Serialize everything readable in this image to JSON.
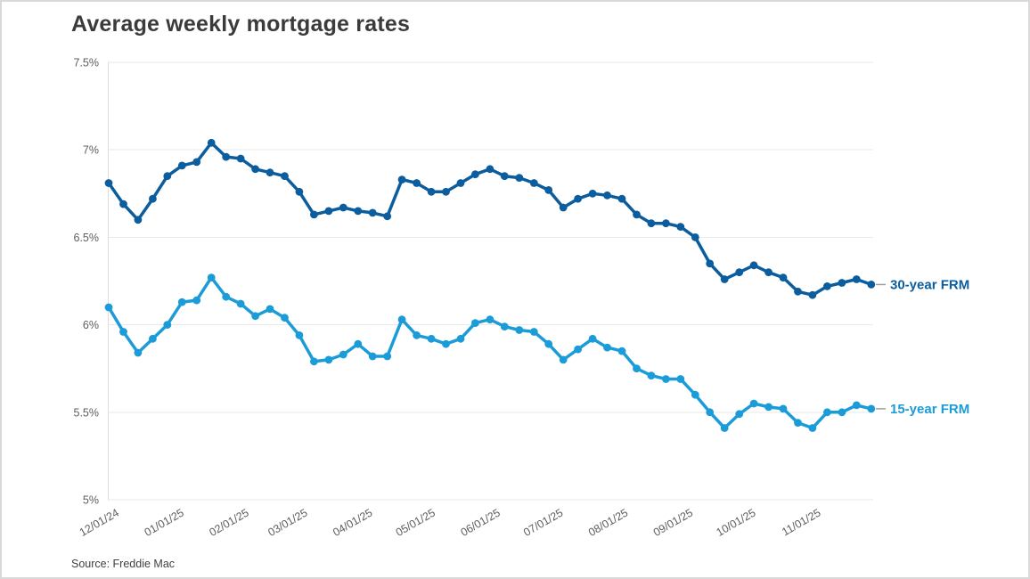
{
  "page": {
    "title": "Average weekly mortgage rates",
    "source": "Source: Freddie Mac"
  },
  "colors": {
    "background": "#ffffff",
    "card_border": "#d9d9d9",
    "title_text": "#3b3b3b",
    "tick_text": "#5e5e5e",
    "gridline": "#e9e9e9",
    "axis_line": "#dedede",
    "legend_dash": "#9e9e9e",
    "series_30yr": "#0b5d9e",
    "series_15yr": "#1b9cd8"
  },
  "chart_data": {
    "type": "line",
    "title": "Average weekly mortgage rates",
    "source": "Source: Freddie Mac",
    "xlabel": "",
    "ylabel": "",
    "ylim": [
      5.0,
      7.5
    ],
    "grid": "horizontal",
    "legend_position": "right-of-last-point",
    "x_frequency": "weekly",
    "x_tick_labels": [
      "12/01/24",
      "01/01/25",
      "02/01/25",
      "03/01/25",
      "04/01/25",
      "05/01/25",
      "06/01/25",
      "07/01/25",
      "08/01/25",
      "09/01/25",
      "10/01/25",
      "11/01/25"
    ],
    "y_tick_labels": [
      "7.5%",
      "7%",
      "6.5%",
      "6%",
      "5.5%",
      "5%"
    ],
    "y_tick_values": [
      7.5,
      7.0,
      6.5,
      6.0,
      5.5,
      5.0
    ],
    "series": [
      {
        "name": "30-year FRM",
        "color": "#0b5d9e",
        "values": [
          6.81,
          6.69,
          6.6,
          6.72,
          6.85,
          6.91,
          6.93,
          7.04,
          6.96,
          6.95,
          6.89,
          6.87,
          6.85,
          6.76,
          6.63,
          6.65,
          6.67,
          6.65,
          6.64,
          6.62,
          6.83,
          6.81,
          6.76,
          6.76,
          6.81,
          6.86,
          6.89,
          6.85,
          6.84,
          6.81,
          6.77,
          6.67,
          6.72,
          6.75,
          6.74,
          6.72,
          6.63,
          6.58,
          6.58,
          6.56,
          6.5,
          6.35,
          6.26,
          6.3,
          6.34,
          6.3,
          6.27,
          6.19,
          6.17,
          6.22,
          6.24,
          6.26,
          6.23
        ]
      },
      {
        "name": "15-year FRM",
        "color": "#1b9cd8",
        "values": [
          6.1,
          5.96,
          5.84,
          5.92,
          6.0,
          6.13,
          6.14,
          6.27,
          6.16,
          6.12,
          6.05,
          6.09,
          6.04,
          5.94,
          5.79,
          5.8,
          5.83,
          5.89,
          5.82,
          5.82,
          6.03,
          5.94,
          5.92,
          5.89,
          5.92,
          6.01,
          6.03,
          5.99,
          5.97,
          5.96,
          5.89,
          5.8,
          5.86,
          5.92,
          5.87,
          5.85,
          5.75,
          5.71,
          5.69,
          5.69,
          5.6,
          5.5,
          5.41,
          5.49,
          5.55,
          5.53,
          5.52,
          5.44,
          5.41,
          5.5,
          5.5,
          5.54,
          5.52
        ]
      }
    ]
  }
}
